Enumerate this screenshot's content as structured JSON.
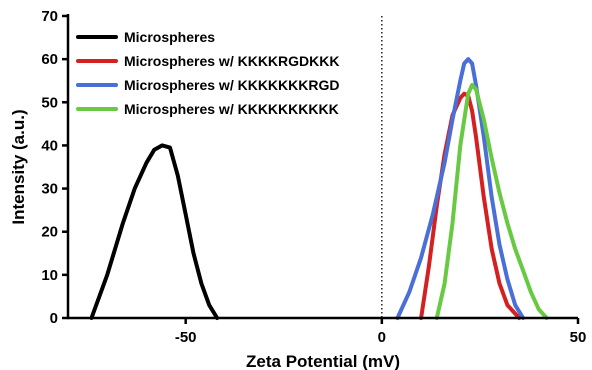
{
  "chart_data": {
    "type": "line",
    "xlabel": "Zeta Potential (mV)",
    "ylabel": "Intensity (a.u.)",
    "xlim": [
      -80,
      50
    ],
    "ylim": [
      0,
      70
    ],
    "xticks": [
      -50,
      0,
      50
    ],
    "yticks": [
      0,
      10,
      20,
      30,
      40,
      50,
      60,
      70
    ],
    "x_tick_labels": [
      "-50",
      "0",
      "50"
    ],
    "y_tick_labels": [
      "0",
      "10",
      "20",
      "30",
      "40",
      "50",
      "60",
      "70"
    ],
    "grid": false,
    "legend_position": "top-left",
    "reference_line": {
      "x": 0,
      "style": "dotted"
    },
    "series": [
      {
        "name": "Microspheres",
        "color": "#000000",
        "x": [
          -74,
          -70,
          -66,
          -63,
          -60,
          -58,
          -56,
          -54,
          -52,
          -50,
          -48,
          -46,
          -44,
          -42
        ],
        "y": [
          0,
          10,
          22,
          30,
          36,
          39,
          40,
          39.5,
          33,
          24,
          15,
          8,
          3,
          0
        ]
      },
      {
        "name": "Microspheres w/ KKKKRGDKKK",
        "color": "#d42020",
        "x": [
          10,
          12,
          14,
          16,
          18,
          20,
          21,
          22,
          23,
          24,
          26,
          28,
          30,
          32,
          35
        ],
        "y": [
          0,
          12,
          26,
          38,
          47,
          51,
          52,
          51.5,
          48,
          42,
          28,
          16,
          8,
          3,
          0
        ]
      },
      {
        "name": "Microspheres w/ KKKKKKKRGD",
        "color": "#4a6fd6",
        "x": [
          4,
          7,
          10,
          13,
          16,
          18,
          20,
          21,
          22,
          23,
          24,
          26,
          28,
          30,
          32,
          34,
          36
        ],
        "y": [
          0,
          6,
          14,
          24,
          36,
          46,
          55,
          59,
          60,
          59,
          54,
          42,
          28,
          17,
          9,
          3,
          0
        ]
      },
      {
        "name": "Microspheres w/ KKKKKKKKKK",
        "color": "#68c942",
        "x": [
          14,
          16,
          18,
          20,
          22,
          23,
          24,
          26,
          28,
          30,
          32,
          34,
          36,
          38,
          40,
          42
        ],
        "y": [
          0,
          8,
          22,
          40,
          52,
          54,
          53,
          46,
          37,
          29,
          22,
          16,
          11,
          6,
          2,
          0
        ]
      }
    ]
  }
}
